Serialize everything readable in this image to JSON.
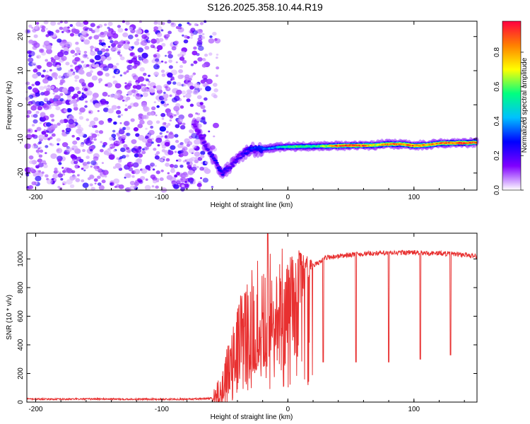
{
  "page": {
    "title": "S126.2025.358.10.44.R19"
  },
  "chart_data": [
    {
      "type": "heatmap",
      "name": "spectrogram",
      "xlabel": "Height of straight line (km)",
      "ylabel": "Frequency (Hz)",
      "xlim": [
        -207,
        150
      ],
      "ylim": [
        -25,
        24.5
      ],
      "x_ticks": [
        -200,
        -100,
        0,
        100
      ],
      "y_ticks": [
        -20,
        -10,
        0,
        10,
        20
      ],
      "colorbar": {
        "label": "Normalized spectral amplitude",
        "range": [
          0,
          0.98
        ],
        "ticks": [
          0.0,
          0.2,
          0.4,
          0.6,
          0.8
        ],
        "tick_labels": [
          "0.0",
          "0.2",
          "0.4",
          "0.6",
          "0.8"
        ],
        "colormap": [
          "#ffffff",
          "#8000ff",
          "#0000ff",
          "#00c0ff",
          "#00ff80",
          "#ffff00",
          "#ff8000",
          "#ff0040"
        ]
      },
      "noise_region": {
        "x_range": [
          -207,
          -65
        ],
        "level": "low 0.0-0.2, scattered"
      },
      "signal_track": {
        "x": [
          -75,
          -65,
          -57,
          -52,
          -45,
          -38,
          -30,
          -20,
          -10,
          0,
          10,
          20,
          30,
          40,
          50,
          60,
          70,
          80,
          90,
          100,
          110,
          120,
          130,
          140,
          150
        ],
        "y": [
          -5.5,
          -12,
          -17,
          -20,
          -18,
          -15,
          -13,
          -13,
          -12.5,
          -12.3,
          -12.2,
          -12.2,
          -12.1,
          -12,
          -11.9,
          -11.9,
          -11.8,
          -11.5,
          -11.5,
          -12,
          -11.8,
          -11.3,
          -11.2,
          -11.2,
          -11
        ],
        "amplitude": [
          0.15,
          0.2,
          0.25,
          0.25,
          0.2,
          0.2,
          0.3,
          0.35,
          0.4,
          0.55,
          0.6,
          0.55,
          0.65,
          0.9,
          0.95,
          0.9,
          0.7,
          0.9,
          0.85,
          0.9,
          0.8,
          0.85,
          0.9,
          0.95,
          0.85
        ]
      }
    },
    {
      "type": "line",
      "name": "snr",
      "xlabel": "Height of straight line (km)",
      "ylabel": "SNR (10 * v/v)",
      "xlim": [
        -207,
        150
      ],
      "ylim": [
        0,
        1180
      ],
      "x_ticks": [
        -200,
        -100,
        0,
        100
      ],
      "y_ticks": [
        0,
        200,
        400,
        600,
        800,
        1000
      ],
      "color": "#e83030",
      "series": [
        {
          "x": [
            -207,
            -180,
            -150,
            -120,
            -90,
            -70,
            -60,
            -55,
            -50,
            -45,
            -40,
            -35,
            -30,
            -25,
            -20,
            -15,
            -10,
            -5,
            0,
            5,
            10,
            15,
            20,
            25,
            30,
            40,
            50,
            60,
            70,
            80,
            90,
            100,
            110,
            120,
            130,
            140,
            150
          ],
          "y": [
            22,
            20,
            22,
            20,
            20,
            22,
            28,
            60,
            120,
            250,
            380,
            450,
            500,
            560,
            600,
            640,
            680,
            720,
            780,
            830,
            870,
            910,
            950,
            980,
            1010,
            1020,
            1030,
            1035,
            1040,
            1040,
            1045,
            1045,
            1040,
            1040,
            1035,
            1030,
            1020
          ]
        }
      ],
      "dips": [
        {
          "x": 28,
          "y": 280
        },
        {
          "x": 54,
          "y": 280
        },
        {
          "x": 80,
          "y": 280
        },
        {
          "x": 105,
          "y": 300
        },
        {
          "x": 129,
          "y": 330
        }
      ],
      "peaks": [
        {
          "x": -16,
          "y": 1180
        }
      ]
    }
  ]
}
